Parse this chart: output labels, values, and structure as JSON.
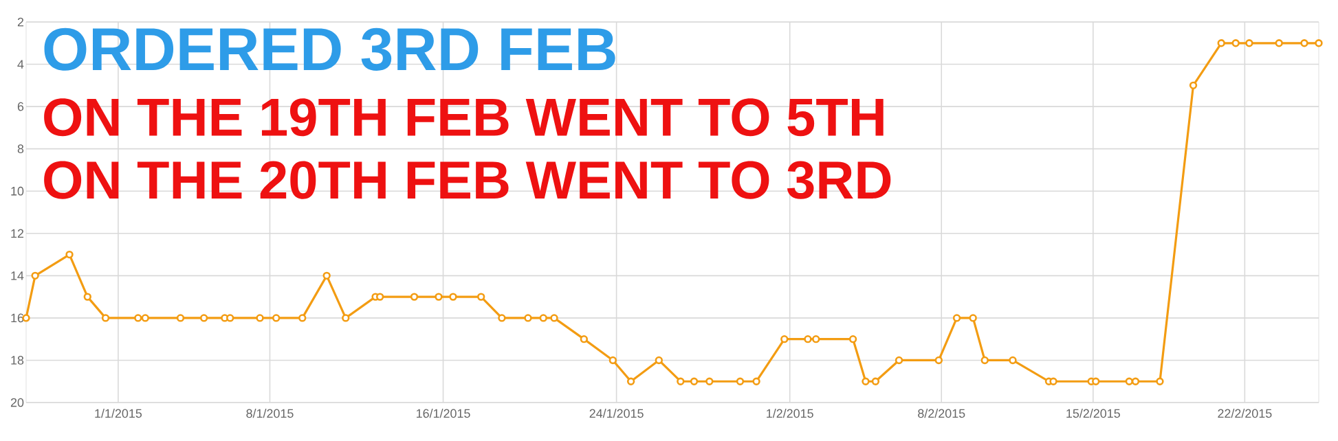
{
  "chart_data": {
    "type": "line",
    "annotations": [
      "ORDERED 3RD FEB",
      "ON THE 19TH FEB WENT TO 5TH",
      "ON THE 20TH FEB WENT TO 3RD"
    ],
    "x": [
      "2014-12-27T18:00",
      "2014-12-28T04:00",
      "2014-12-29T18:00",
      "2014-12-30T14:00",
      "2014-12-31T10:00",
      "2015-01-01T22:00",
      "2015-01-02T06:00",
      "2015-01-03T21:00",
      "2015-01-04T23:00",
      "2015-01-05T22:00",
      "2015-01-06T04:00",
      "2015-01-07T13:00",
      "2015-01-08T07:00",
      "2015-01-09T12:00",
      "2015-01-10T15:00",
      "2015-01-11T12:00",
      "2015-01-12T21:00",
      "2015-01-13T02:00",
      "2015-01-14T16:00",
      "2015-01-15T19:00",
      "2015-01-16T11:00",
      "2015-01-17T18:00",
      "2015-01-18T17:00",
      "2015-01-19T22:00",
      "2015-01-20T15:00",
      "2015-01-21T03:00",
      "2015-01-22T12:00",
      "2015-01-23T20:00",
      "2015-01-24T16:00",
      "2015-01-25T23:00",
      "2015-01-26T23:00",
      "2015-01-27T14:00",
      "2015-01-28T07:00",
      "2015-01-29T17:00",
      "2015-01-30T11:00",
      "2015-01-31T18:00",
      "2015-02-01T20:00",
      "2015-02-02T05:00",
      "2015-02-03T22:00",
      "2015-02-04T12:00",
      "2015-02-04T23:00",
      "2015-02-06T01:00",
      "2015-02-07T21:00",
      "2015-02-08T17:00",
      "2015-02-09T11:00",
      "2015-02-10T00:00",
      "2015-02-11T07:00",
      "2015-02-12T23:00",
      "2015-02-13T04:00",
      "2015-02-14T22:00",
      "2015-02-15T03:00",
      "2015-02-16T16:00",
      "2015-02-16T23:00",
      "2015-02-18T02:00",
      "2015-02-19T15:00",
      "2015-02-20T22:00",
      "2015-02-21T14:00",
      "2015-02-22T05:00",
      "2015-02-23T14:00",
      "2015-02-24T18:00",
      "2015-02-25T10:00"
    ],
    "values": [
      16,
      14,
      13,
      15,
      16,
      16,
      16,
      16,
      16,
      16,
      16,
      16,
      16,
      16,
      14,
      16,
      15,
      15,
      15,
      15,
      15,
      15,
      16,
      16,
      16,
      16,
      17,
      18,
      19,
      18,
      19,
      19,
      19,
      19,
      19,
      17,
      17,
      17,
      17,
      19,
      19,
      18,
      18,
      16,
      16,
      18,
      18,
      19,
      19,
      19,
      19,
      19,
      19,
      19,
      5,
      3,
      3,
      3,
      3,
      3,
      3
    ],
    "color": "#f39c12",
    "marker": "circle",
    "grid": true,
    "xlim": [
      "2014-12-27T18:00",
      "2015-02-25T10:00"
    ],
    "xticks": [
      {
        "value": "2015-01-01",
        "label": "1/1/2015"
      },
      {
        "value": "2015-01-08",
        "label": "8/1/2015"
      },
      {
        "value": "2015-01-16",
        "label": "16/1/2015"
      },
      {
        "value": "2015-01-24",
        "label": "24/1/2015"
      },
      {
        "value": "2015-02-01",
        "label": "1/2/2015"
      },
      {
        "value": "2015-02-08",
        "label": "8/2/2015"
      },
      {
        "value": "2015-02-15",
        "label": "15/2/2015"
      },
      {
        "value": "2015-02-22",
        "label": "22/2/2015"
      }
    ],
    "ylim": [
      20,
      2
    ],
    "yticks": [
      2,
      4,
      6,
      8,
      10,
      12,
      14,
      16,
      18,
      20
    ]
  }
}
